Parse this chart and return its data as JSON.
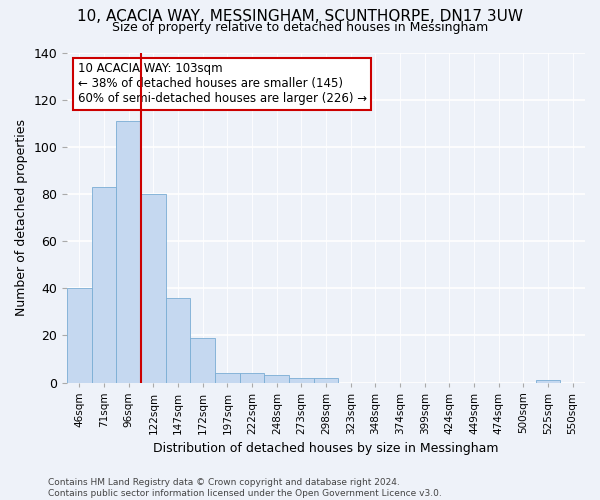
{
  "title": "10, ACACIA WAY, MESSINGHAM, SCUNTHORPE, DN17 3UW",
  "subtitle": "Size of property relative to detached houses in Messingham",
  "xlabel": "Distribution of detached houses by size in Messingham",
  "ylabel": "Number of detached properties",
  "bar_values": [
    40,
    83,
    111,
    80,
    36,
    19,
    4,
    4,
    3,
    2,
    2,
    0,
    0,
    0,
    0,
    0,
    0,
    0,
    0,
    1,
    0
  ],
  "bar_labels": [
    "46sqm",
    "71sqm",
    "96sqm",
    "122sqm",
    "147sqm",
    "172sqm",
    "197sqm",
    "222sqm",
    "248sqm",
    "273sqm",
    "298sqm",
    "323sqm",
    "348sqm",
    "374sqm",
    "399sqm",
    "424sqm",
    "449sqm",
    "474sqm",
    "500sqm",
    "525sqm",
    "550sqm"
  ],
  "bar_color": "#c5d8f0",
  "bar_edge_color": "#7aadd4",
  "vline_x": 2.5,
  "vline_color": "#cc0000",
  "annotation_text": "10 ACACIA WAY: 103sqm\n← 38% of detached houses are smaller (145)\n60% of semi-detached houses are larger (226) →",
  "annotation_box_facecolor": "#ffffff",
  "annotation_box_edgecolor": "#cc0000",
  "ylim": [
    0,
    140
  ],
  "yticks": [
    0,
    20,
    40,
    60,
    80,
    100,
    120,
    140
  ],
  "background_color": "#eef2f9",
  "grid_color": "#ffffff",
  "title_fontsize": 11,
  "subtitle_fontsize": 9,
  "footer": "Contains HM Land Registry data © Crown copyright and database right 2024.\nContains public sector information licensed under the Open Government Licence v3.0."
}
